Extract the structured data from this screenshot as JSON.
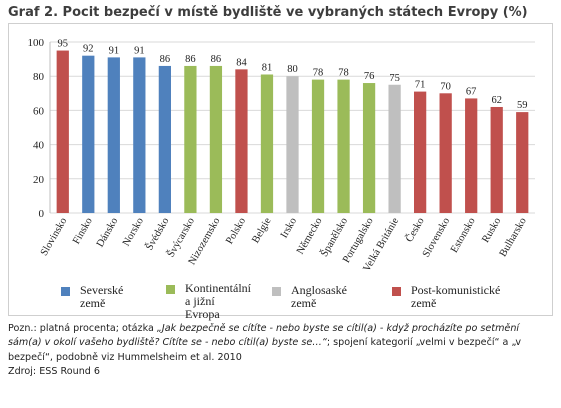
{
  "title": "Graf 2. Pocit bezpečí v místě bydliště ve vybraných státech Evropy (%)",
  "colors": {
    "severske": "#4f81bd",
    "kontinentalni": "#9bbb59",
    "anglosaske": "#bfbfbf",
    "postkomunisticke": "#c0504d"
  },
  "chart_data": {
    "type": "bar",
    "categories": [
      "Slovinsko",
      "Finsko",
      "Dánsko",
      "Norsko",
      "Švédsko",
      "Švýcarsko",
      "Nizozemsko",
      "Polsko",
      "Belgie",
      "Irsko",
      "Německo",
      "Španělsko",
      "Portugalsko",
      "Velká Británie",
      "Česko",
      "Slovensko",
      "Estonsko",
      "Rusko",
      "Bulharsko"
    ],
    "values": [
      95,
      92,
      91,
      91,
      86,
      86,
      86,
      84,
      81,
      80,
      78,
      78,
      76,
      75,
      71,
      70,
      67,
      62,
      59
    ],
    "groups": [
      "postkomunisticke",
      "severske",
      "severske",
      "severske",
      "severske",
      "kontinentalni",
      "kontinentalni",
      "postkomunisticke",
      "kontinentalni",
      "anglosaske",
      "kontinentalni",
      "kontinentalni",
      "kontinentalni",
      "anglosaske",
      "postkomunisticke",
      "postkomunisticke",
      "postkomunisticke",
      "postkomunisticke",
      "postkomunisticke"
    ],
    "ylim": [
      0,
      100
    ],
    "yticks": [
      0,
      20,
      40,
      60,
      80,
      100
    ],
    "grid": true,
    "legend_position": "bottom"
  },
  "legend": [
    {
      "key": "severske",
      "label": "Severské\nzemě"
    },
    {
      "key": "kontinentalni",
      "label": "Kontinentální\na jižní\nEvropa"
    },
    {
      "key": "anglosaske",
      "label": "Anglosaské\nzemě"
    },
    {
      "key": "postkomunisticke",
      "label": "Post-komunistické\nzemě"
    }
  ],
  "note": {
    "prefix": "Pozn.: platná procenta; otázka ",
    "question_line1": "„Jak bezpečně se cítíte - nebo byste se cítil(a) - když procházíte po setmění",
    "question_line2": "sám(a) v okolí vašeho bydliště? Cítíte se - nebo cítil(a) byste se…“",
    "after_question": "; spojení kategorií „velmi v bezpečí“ a „v",
    "line3": "bezpečí“, podobně viz Hummelsheim et al. 2010",
    "source": "Zdroj: ESS Round 6"
  }
}
